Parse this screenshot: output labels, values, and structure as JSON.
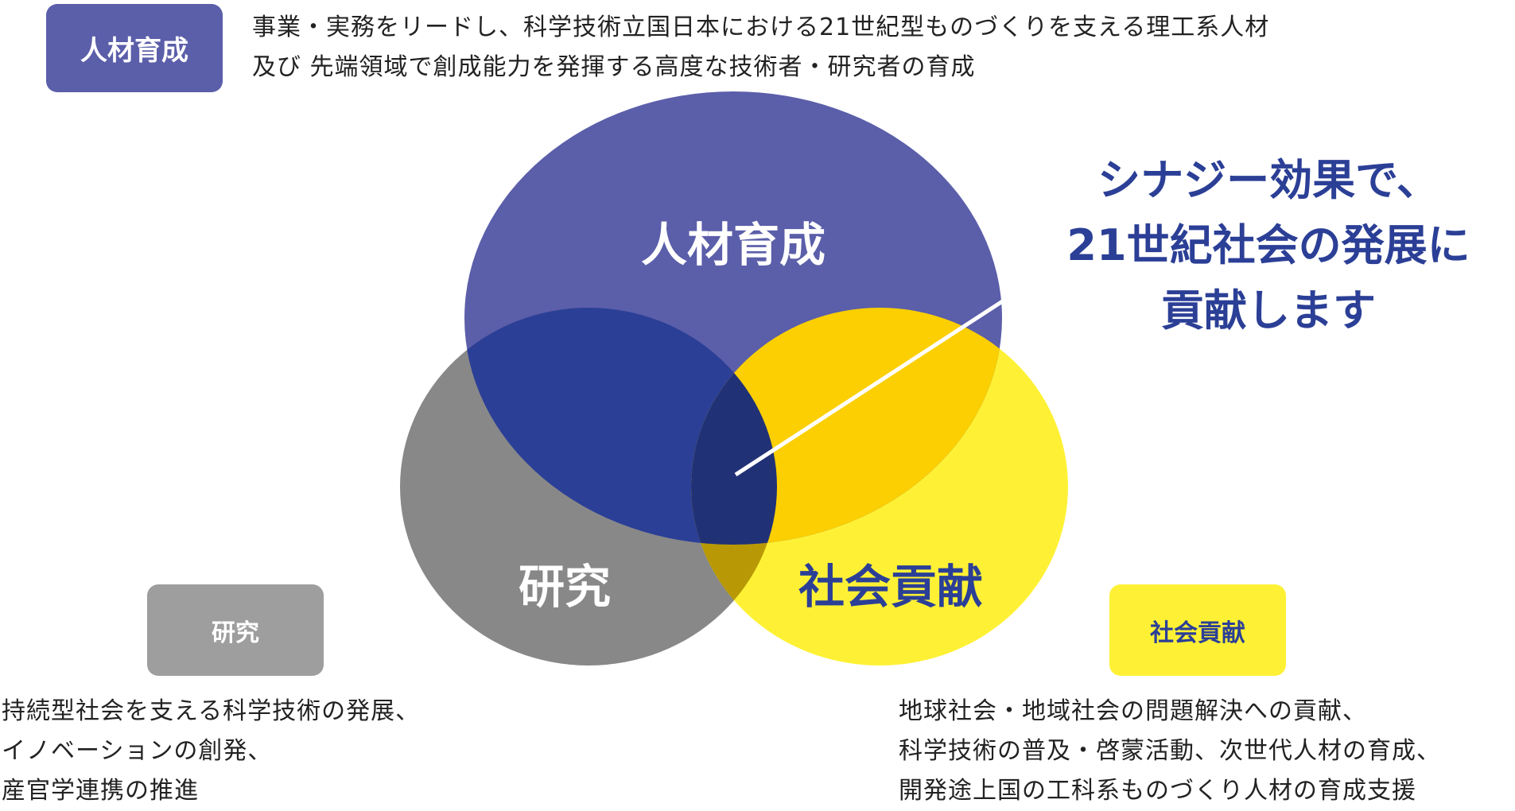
{
  "colors": {
    "jinzai": "#5B5EA9",
    "kenkyu": "#888888",
    "shakai": "#FEF135",
    "jinzai_kenkyu": "#2B3F96",
    "jinzai_shakai": "#FBCF02",
    "kenkyu_shakai": "#B89905",
    "center": "#213176",
    "synergy_text": "#2B3F96",
    "badge_kenkyu": "#9E9E9E",
    "badge_shakai_text": "#2B3F96"
  },
  "badges": {
    "jinzai": "人材育成",
    "kenkyu": "研究",
    "shakai": "社会貢献"
  },
  "descriptions": {
    "jinzai": [
      "事業・実務をリードし、科学技術立国日本における21世紀型ものづくりを支える理工系人材",
      "及び 先端領域で創成能力を発揮する高度な技術者・研究者の育成"
    ],
    "kenkyu": [
      "持続型社会を支える科学技術の発展、",
      "イノベーションの創発、",
      "産官学連携の推進"
    ],
    "shakai": [
      "地球社会・地域社会の問題解決への貢献、",
      "科学技術の普及・啓蒙活動、次世代人材の育成、",
      "開発途上国の工科系ものづくり人材の育成支援"
    ]
  },
  "circles": {
    "jinzai": "人材育成",
    "kenkyu": "研究",
    "shakai": "社会貢献"
  },
  "synergy": [
    "シナジー効果で、",
    "21世紀社会の発展に",
    "貢献します"
  ]
}
